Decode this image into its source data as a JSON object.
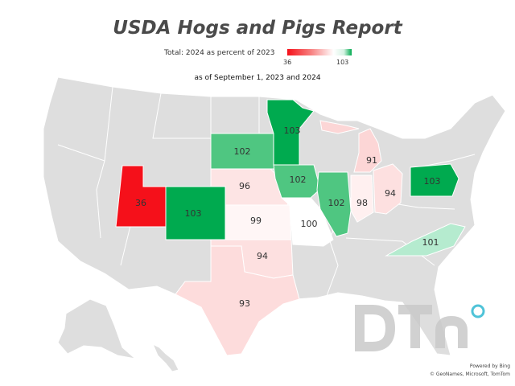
{
  "title": "USDA Hogs and Pigs Report",
  "legend": {
    "label": "Total: 2024 as percent of 2023",
    "min": "36",
    "max": "103"
  },
  "subtitle": "as of September 1, 2023 and 2024",
  "colors": {
    "low": "#f5101a",
    "high": "#00aa4f",
    "neutral_state": "#dedede",
    "border": "#ffffff"
  },
  "states": [
    {
      "name": "Utah",
      "label": "36",
      "value": 36,
      "color": "#f5101a"
    },
    {
      "name": "Colorado",
      "label": "103",
      "value": 103,
      "color": "#00aa4f"
    },
    {
      "name": "South Dakota",
      "label": "102",
      "value": 102,
      "color": "#4fc681"
    },
    {
      "name": "Minnesota",
      "label": "103",
      "value": 103,
      "color": "#00aa4f"
    },
    {
      "name": "Nebraska",
      "label": "96",
      "value": 96,
      "color": "#fde4e4"
    },
    {
      "name": "Kansas",
      "label": "99",
      "value": 99,
      "color": "#fff6f6"
    },
    {
      "name": "Iowa",
      "label": "102",
      "value": 102,
      "color": "#4fc681"
    },
    {
      "name": "Missouri",
      "label": "100",
      "value": 100,
      "color": "#ffffff"
    },
    {
      "name": "Illinois",
      "label": "102",
      "value": 102,
      "color": "#4fc681"
    },
    {
      "name": "Indiana",
      "label": "98",
      "value": 98,
      "color": "#fff0f0"
    },
    {
      "name": "Ohio",
      "label": "94",
      "value": 94,
      "color": "#fde0e0"
    },
    {
      "name": "Michigan",
      "label": "91",
      "value": 91,
      "color": "#fcd6d6"
    },
    {
      "name": "Pennsylvania",
      "label": "103",
      "value": 103,
      "color": "#00aa4f"
    },
    {
      "name": "North Carolina",
      "label": "101",
      "value": 101,
      "color": "#b5ebcf"
    },
    {
      "name": "Oklahoma",
      "label": "94",
      "value": 94,
      "color": "#fde0e0"
    },
    {
      "name": "Texas",
      "label": "93",
      "value": 93,
      "color": "#fddcdc"
    }
  ],
  "watermark": "DTN",
  "credit": {
    "line1": "Powered by Bing",
    "line2": "© GeoNames, Microsoft, TomTom"
  }
}
